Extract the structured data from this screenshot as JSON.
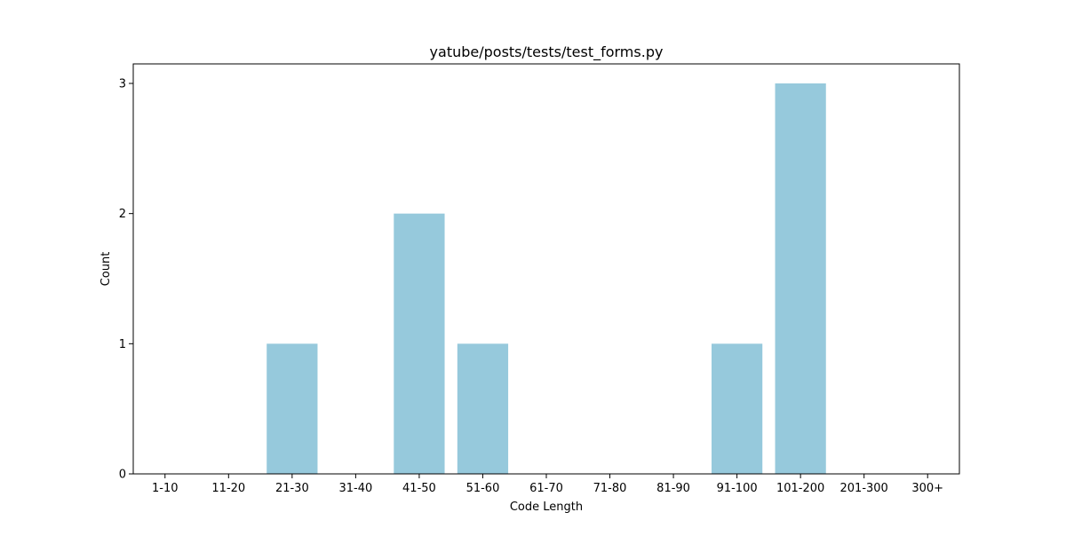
{
  "chart_data": {
    "type": "bar",
    "title": "yatube/posts/tests/test_forms.py",
    "xlabel": "Code Length",
    "ylabel": "Count",
    "categories": [
      "1-10",
      "11-20",
      "21-30",
      "31-40",
      "41-50",
      "51-60",
      "61-70",
      "71-80",
      "81-90",
      "91-100",
      "101-200",
      "201-300",
      "300+"
    ],
    "values": [
      0,
      0,
      1,
      0,
      2,
      1,
      0,
      0,
      0,
      1,
      3,
      0,
      0
    ],
    "yticks": [
      0,
      1,
      2,
      3
    ],
    "ylim": [
      0,
      3.15
    ],
    "bar_color": "#96c9dc",
    "grid": false,
    "legend": "none"
  }
}
